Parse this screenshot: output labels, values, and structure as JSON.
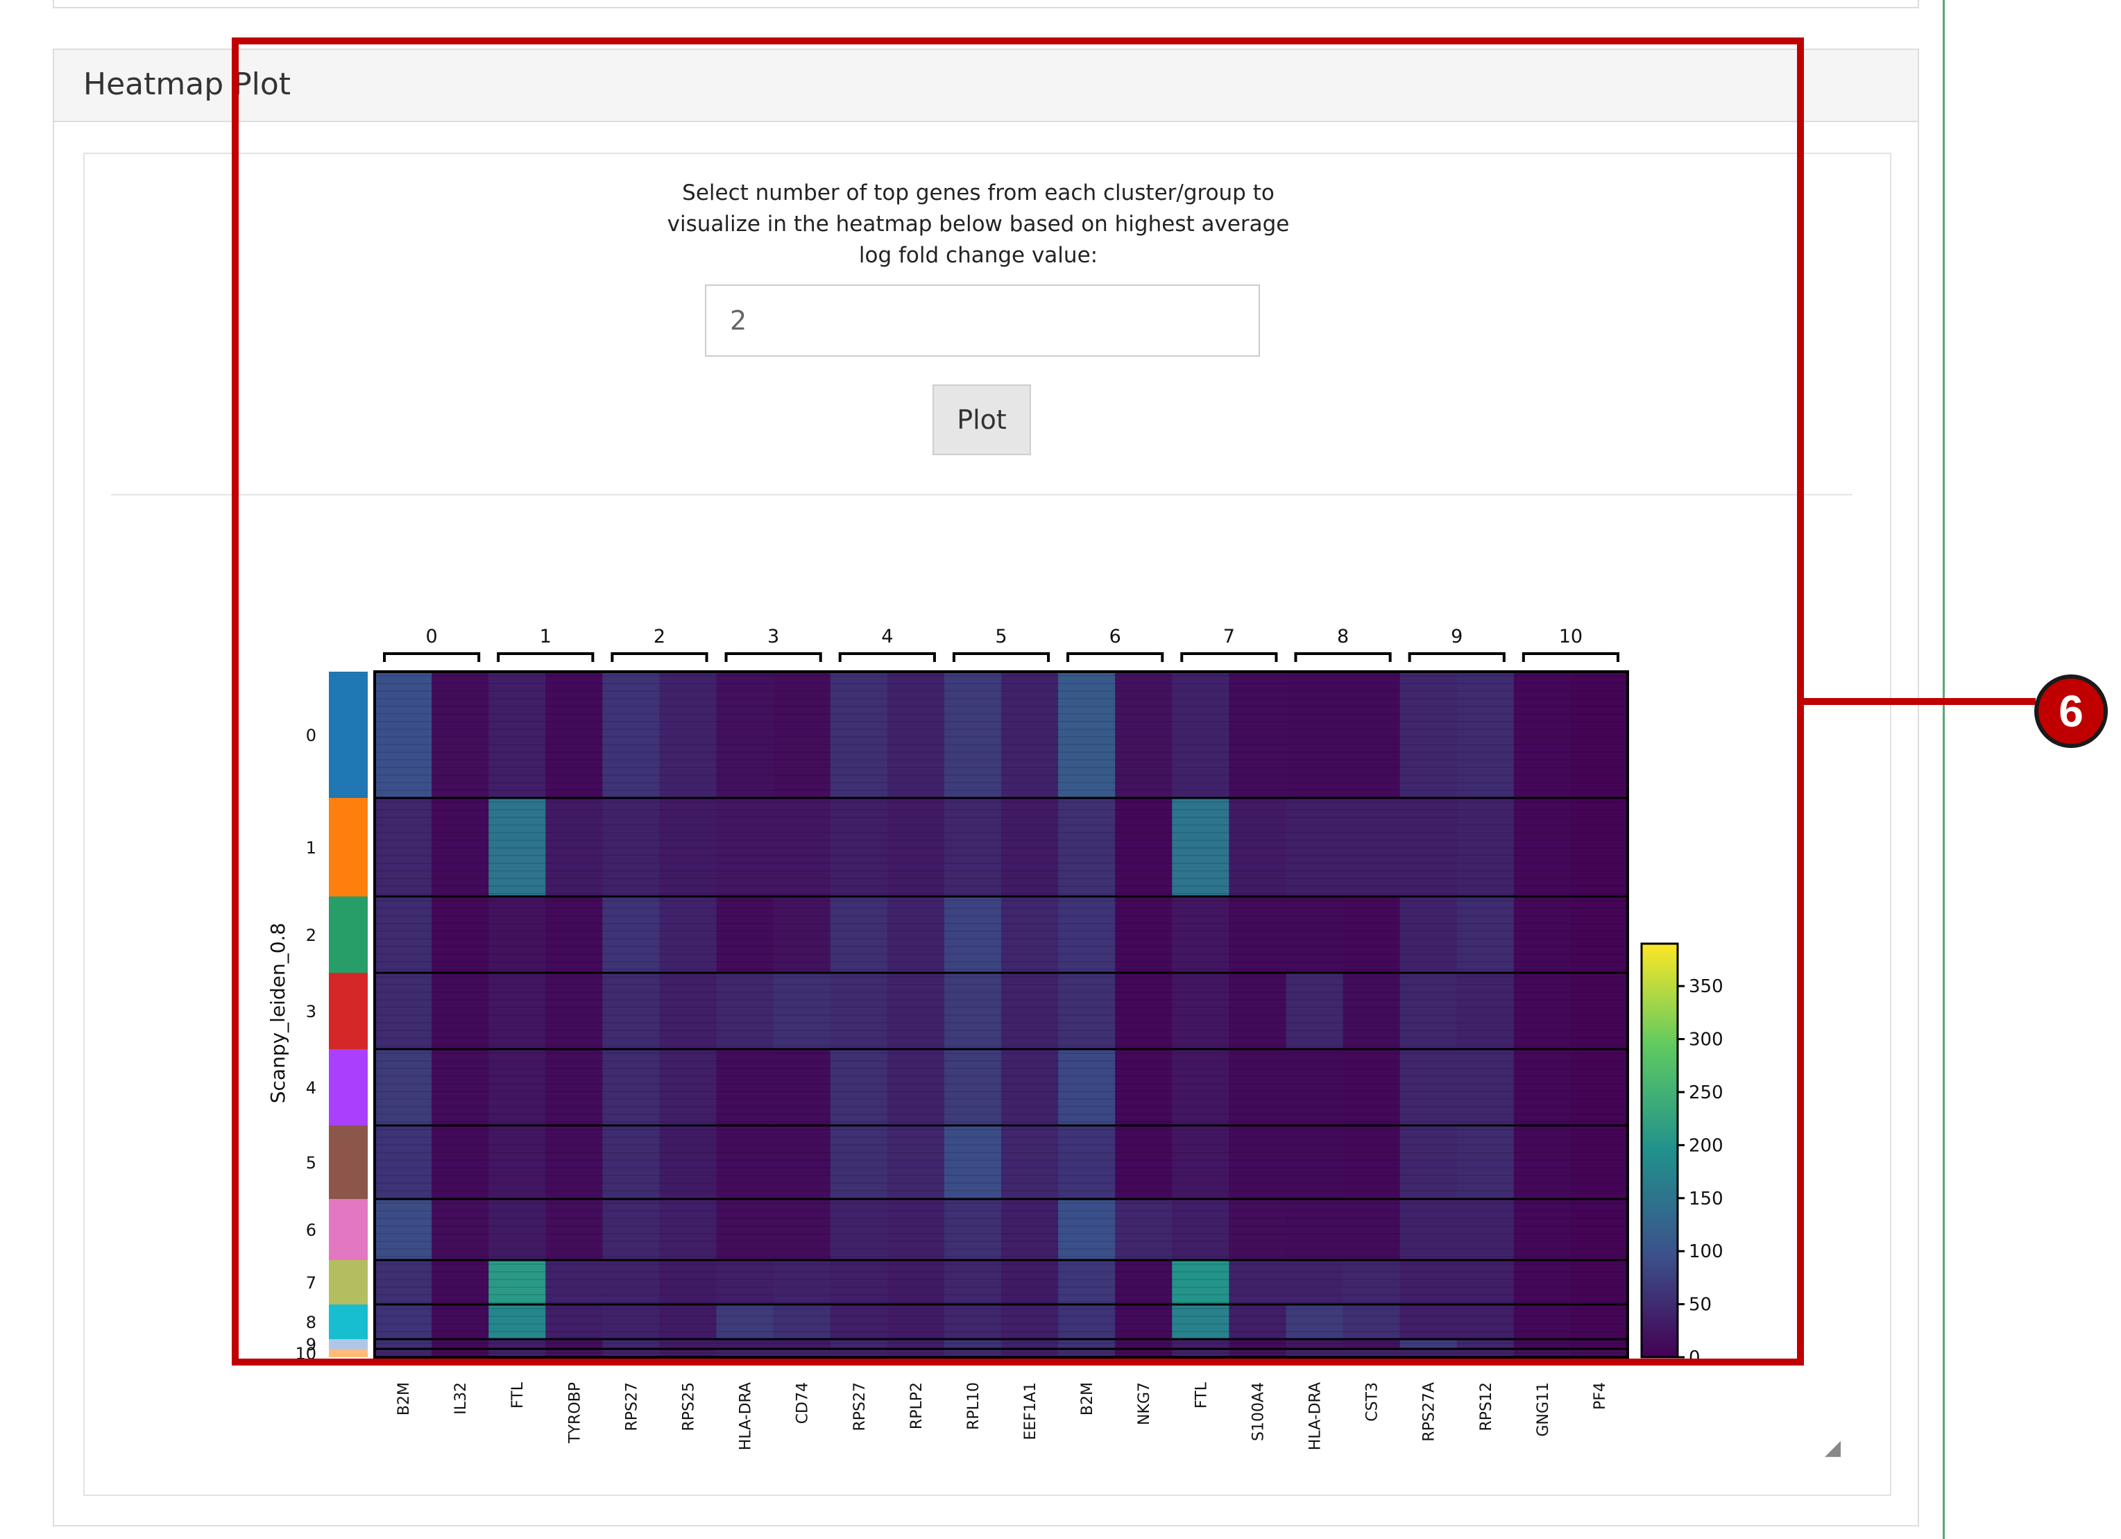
{
  "panel": {
    "title": "Heatmap Plot"
  },
  "controls": {
    "prompt": "Select number of top genes from each cluster/group to visualize in the heatmap below based on highest average log fold change value:",
    "input_value": "2",
    "plot_button_label": "Plot"
  },
  "annotation": {
    "badge_label": "6"
  },
  "chart_data": {
    "type": "heatmap",
    "ylabel": "Scanpy_leiden_0.8",
    "column_group_labels": [
      "0",
      "1",
      "2",
      "3",
      "4",
      "5",
      "6",
      "7",
      "8",
      "9",
      "10"
    ],
    "genes": [
      "B2M",
      "IL32",
      "FTL",
      "TYROBP",
      "RPS27",
      "RPS25",
      "HLA-DRA",
      "CD74",
      "RPS27",
      "RPLP2",
      "RPL10",
      "EEF1A1",
      "B2M",
      "NKG7",
      "FTL",
      "S100A4",
      "HLA-DRA",
      "CST3",
      "RPS27A",
      "RPS12",
      "GNG11",
      "PF4"
    ],
    "row_groups": [
      "0",
      "1",
      "2",
      "3",
      "4",
      "5",
      "6",
      "7",
      "8",
      "9",
      "10"
    ],
    "row_group_colors": [
      "#1f77b4",
      "#ff7f0e",
      "#279e68",
      "#d62728",
      "#aa40fc",
      "#8c564b",
      "#e377c2",
      "#b5bd61",
      "#17becf",
      "#aec7e8",
      "#ffbb78"
    ],
    "colorbar": {
      "ticks": [
        "350",
        "300",
        "250",
        "200",
        "150",
        "100",
        "50",
        "0"
      ],
      "min": 0,
      "max": 390
    },
    "intensity_matrix": [
      [
        95,
        15,
        35,
        10,
        60,
        40,
        18,
        15,
        55,
        40,
        70,
        40,
        110,
        20,
        40,
        12,
        10,
        10,
        45,
        50,
        8,
        5
      ],
      [
        45,
        10,
        150,
        30,
        40,
        30,
        25,
        25,
        35,
        30,
        45,
        30,
        55,
        8,
        150,
        30,
        35,
        35,
        35,
        40,
        8,
        5
      ],
      [
        50,
        8,
        20,
        10,
        60,
        40,
        12,
        20,
        55,
        40,
        80,
        45,
        60,
        8,
        25,
        10,
        10,
        8,
        40,
        50,
        8,
        5
      ],
      [
        50,
        10,
        25,
        12,
        50,
        35,
        45,
        55,
        50,
        40,
        70,
        40,
        55,
        8,
        25,
        10,
        45,
        12,
        45,
        40,
        8,
        5
      ],
      [
        70,
        12,
        25,
        12,
        50,
        35,
        12,
        12,
        55,
        40,
        70,
        40,
        85,
        8,
        25,
        10,
        10,
        8,
        45,
        45,
        8,
        5
      ],
      [
        60,
        10,
        25,
        12,
        50,
        30,
        12,
        12,
        55,
        45,
        90,
        45,
        60,
        8,
        25,
        10,
        10,
        8,
        45,
        50,
        8,
        5
      ],
      [
        90,
        15,
        30,
        15,
        45,
        35,
        15,
        15,
        40,
        35,
        55,
        35,
        95,
        45,
        35,
        15,
        12,
        12,
        40,
        40,
        8,
        5
      ],
      [
        55,
        10,
        210,
        40,
        40,
        30,
        35,
        40,
        35,
        30,
        45,
        30,
        65,
        10,
        200,
        40,
        40,
        45,
        35,
        35,
        8,
        5
      ],
      [
        60,
        10,
        180,
        35,
        40,
        30,
        70,
        55,
        35,
        30,
        45,
        35,
        60,
        10,
        170,
        35,
        70,
        55,
        35,
        35,
        8,
        5
      ],
      [
        55,
        10,
        35,
        15,
        45,
        30,
        30,
        30,
        45,
        35,
        60,
        40,
        60,
        10,
        35,
        12,
        25,
        20,
        70,
        45,
        8,
        5
      ],
      [
        45,
        10,
        40,
        20,
        40,
        30,
        40,
        40,
        40,
        35,
        50,
        35,
        50,
        10,
        40,
        20,
        40,
        40,
        40,
        40,
        20,
        15
      ]
    ]
  }
}
